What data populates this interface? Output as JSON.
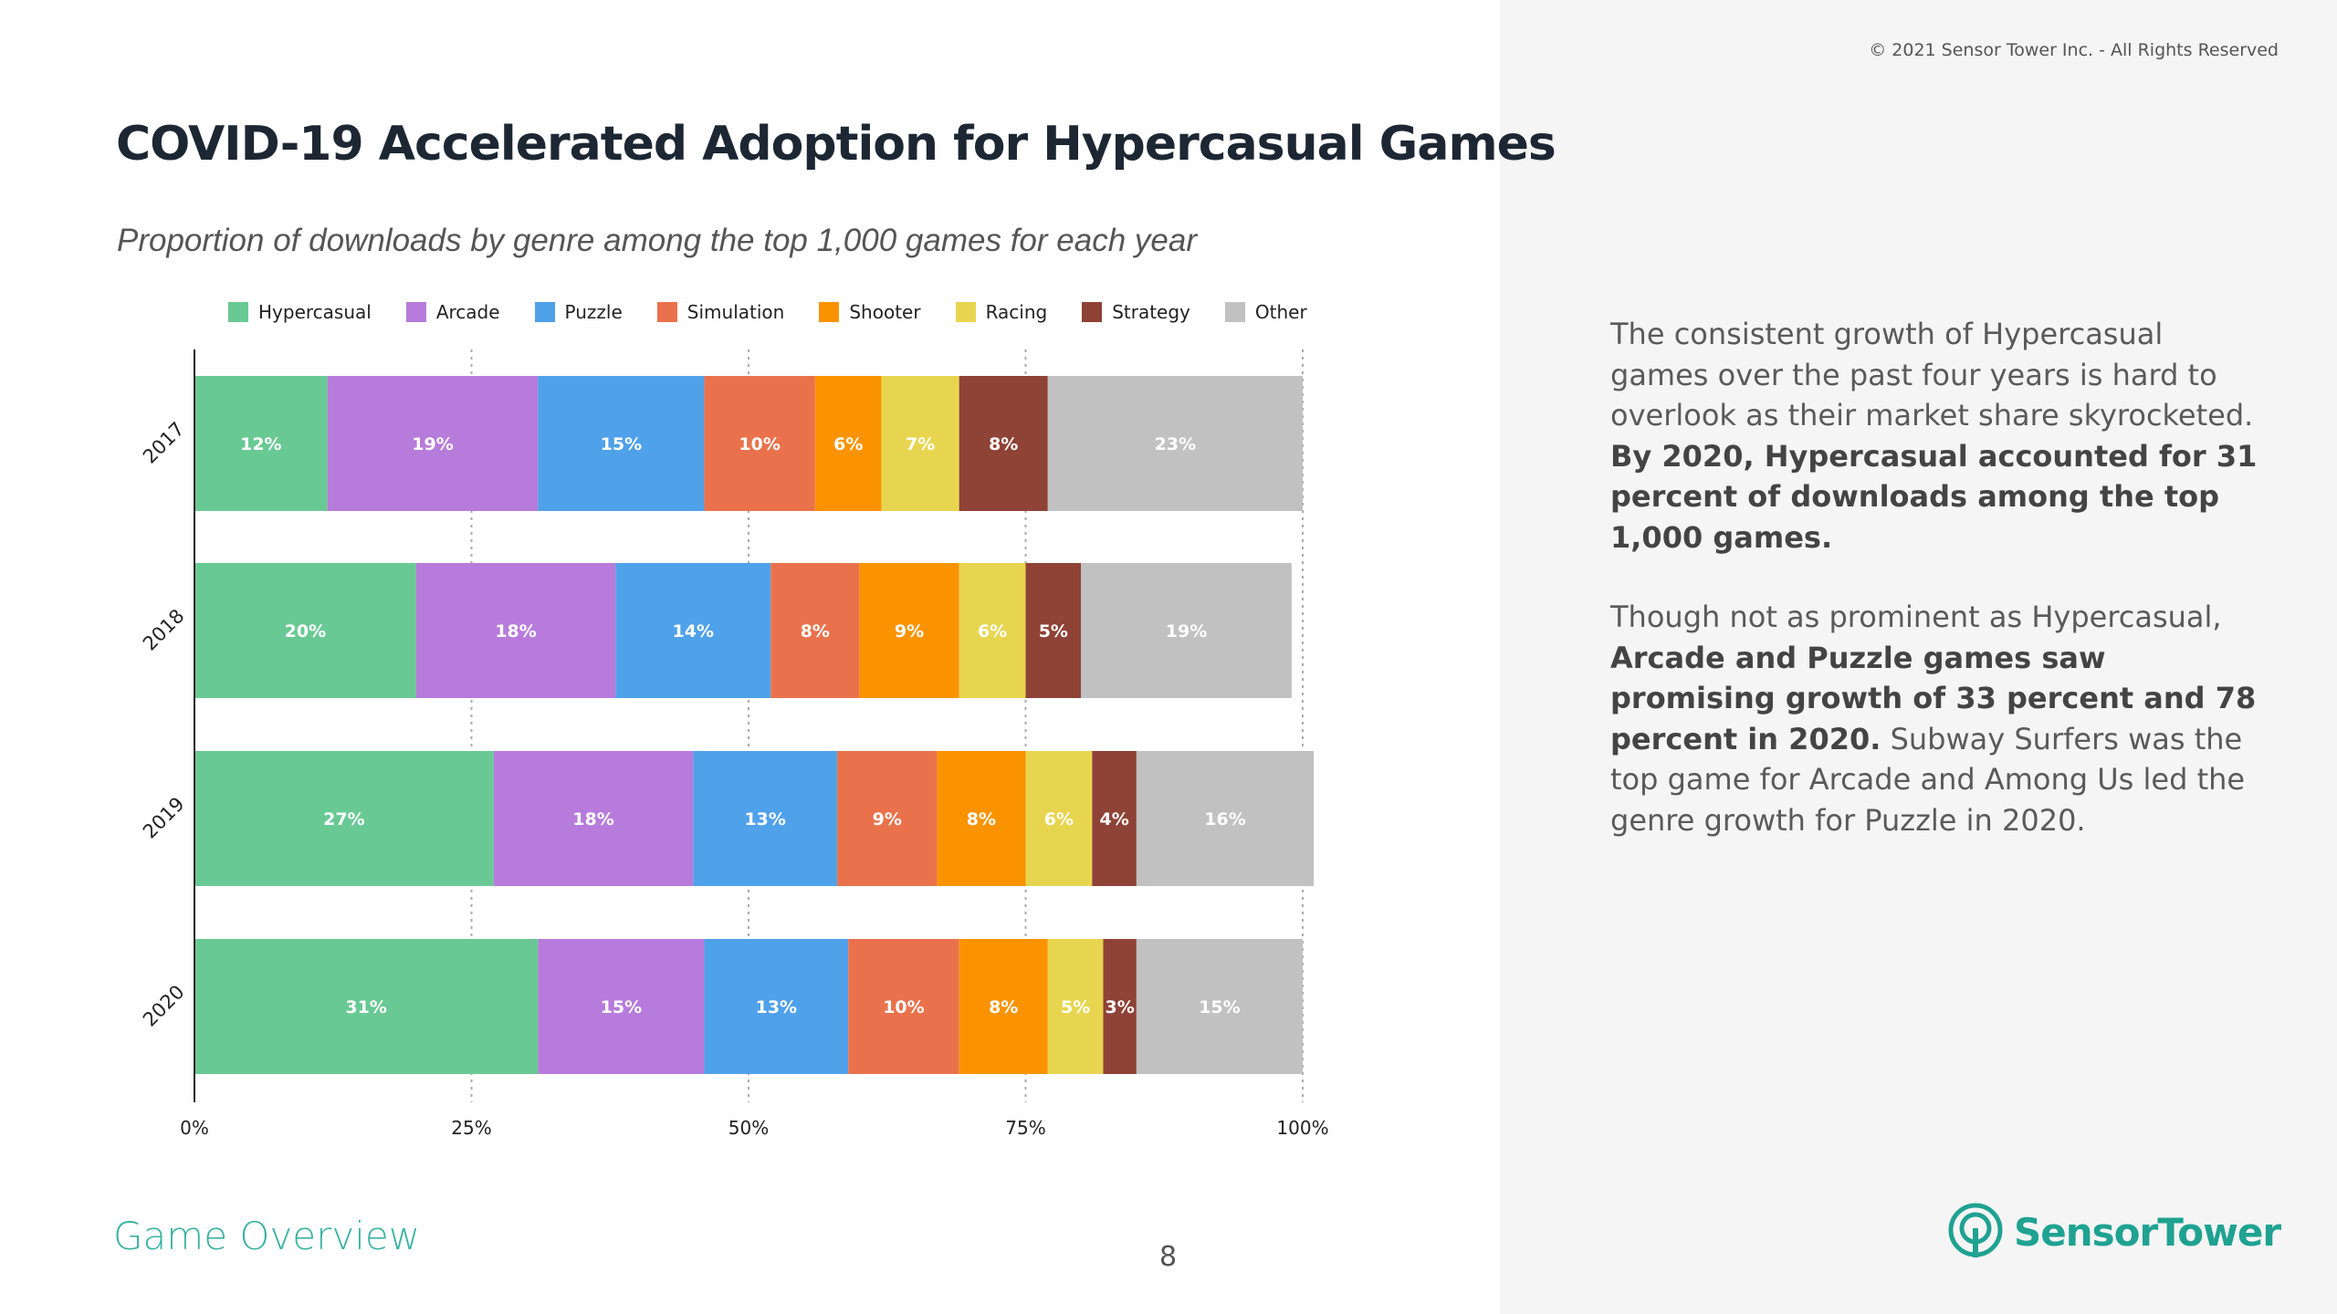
{
  "copyright": "© 2021 Sensor Tower Inc. - All Rights Reserved",
  "title": "COVID-19 Accelerated Adoption for Hypercasual Games",
  "subtitle": "Proportion of downloads by genre among the top 1,000 games for each year",
  "chart_data": {
    "type": "bar",
    "orientation": "horizontal",
    "stacked": true,
    "categories": [
      "2017",
      "2018",
      "2019",
      "2020"
    ],
    "series": [
      {
        "name": "Hypercasual",
        "color": "#69c994",
        "values": [
          12,
          20,
          27,
          31
        ]
      },
      {
        "name": "Arcade",
        "color": "#b77bdb",
        "values": [
          19,
          18,
          18,
          15
        ]
      },
      {
        "name": "Puzzle",
        "color": "#4fa1ea",
        "values": [
          15,
          14,
          13,
          13
        ]
      },
      {
        "name": "Simulation",
        "color": "#e9724c",
        "values": [
          10,
          8,
          9,
          10
        ]
      },
      {
        "name": "Shooter",
        "color": "#fb9300",
        "values": [
          6,
          9,
          8,
          8
        ]
      },
      {
        "name": "Racing",
        "color": "#e8d54f",
        "values": [
          7,
          6,
          6,
          5
        ]
      },
      {
        "name": "Strategy",
        "color": "#8f4236",
        "values": [
          8,
          5,
          4,
          3
        ]
      },
      {
        "name": "Other",
        "color": "#c1c1c1",
        "values": [
          23,
          19,
          16,
          15
        ]
      }
    ],
    "xlim": [
      0,
      100
    ],
    "xticks": [
      "0%",
      "25%",
      "50%",
      "75%",
      "100%"
    ],
    "grid": "vertical dotted",
    "legend_position": "top"
  },
  "body": {
    "p1_plain": "The consistent growth of Hypercasual games over the past four years is hard to overlook as their market share skyrocketed. ",
    "p1_bold": "By 2020, Hypercasual accounted for 31 percent of downloads among the top 1,000 games.",
    "p2_plain1": "Though not as prominent as Hypercasual, ",
    "p2_bold": "Arcade and Puzzle games saw promising growth of 33 percent and 78 percent in 2020.",
    "p2_plain2": " Subway Surfers was the top game for Arcade and  Among Us led the genre growth for Puzzle in 2020."
  },
  "footer": {
    "section": "Game Overview",
    "page_number": "8",
    "logo_text": "SensorTower"
  },
  "colors": {
    "accent": "#3bb3a2",
    "logo": "#1fa291"
  }
}
